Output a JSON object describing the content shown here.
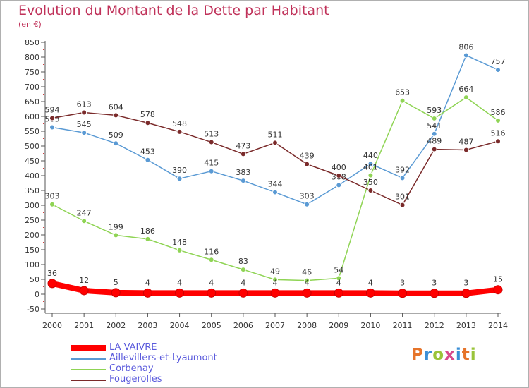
{
  "title": "Evolution du Montant de la Dette par Habitant",
  "unit_label": "(en €)",
  "logo_text": "Proxiti",
  "logo_colors": [
    "#e6742a",
    "#3b8fd6",
    "#9ac43a",
    "#d94a8c",
    "#3b8fd6",
    "#e6742a",
    "#9ac43a"
  ],
  "chart_data": {
    "type": "line",
    "x": [
      "2000",
      "2001",
      "2002",
      "2003",
      "2004",
      "2005",
      "2006",
      "2007",
      "2008",
      "2009",
      "2010",
      "2011",
      "2012",
      "2013",
      "2014"
    ],
    "ylim": [
      -50,
      850
    ],
    "yticks": [
      -50,
      0,
      50,
      100,
      150,
      200,
      250,
      300,
      350,
      400,
      450,
      500,
      550,
      600,
      650,
      700,
      750,
      800,
      850
    ],
    "grid": false,
    "legend_position": "bottom-left",
    "series": [
      {
        "name": "LA VAIVRE",
        "color": "#ff0000",
        "values": [
          36,
          12,
          5,
          4,
          4,
          4,
          4,
          4,
          4,
          4,
          4,
          3,
          3,
          3,
          15
        ]
      },
      {
        "name": "Aillevillers-et-Lyaumont",
        "color": "#5a9ad4",
        "values": [
          563,
          545,
          509,
          453,
          390,
          415,
          383,
          344,
          303,
          368,
          440,
          392,
          541,
          806,
          757
        ]
      },
      {
        "name": "Corbenay",
        "color": "#8fd454",
        "values": [
          303,
          247,
          199,
          186,
          148,
          116,
          83,
          49,
          46,
          54,
          401,
          653,
          593,
          664,
          586
        ]
      },
      {
        "name": "Fougerolles",
        "color": "#7a2a2a",
        "values": [
          594,
          613,
          604,
          578,
          548,
          513,
          473,
          511,
          439,
          400,
          350,
          301,
          489,
          487,
          516
        ]
      }
    ]
  }
}
